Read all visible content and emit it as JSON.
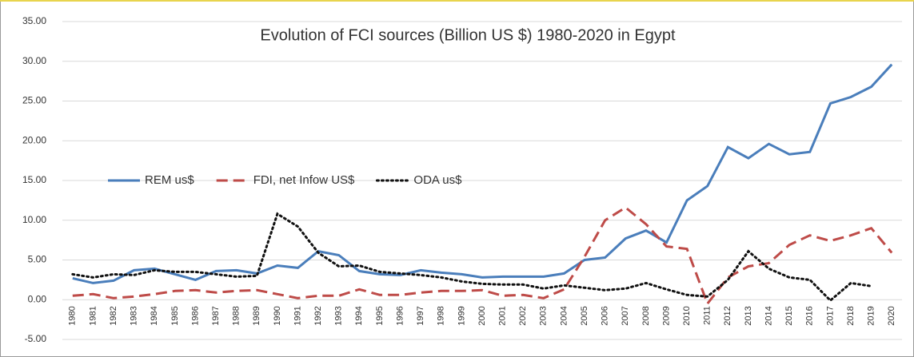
{
  "chart_data": {
    "type": "line",
    "title": "Evolution of FCI sources (Billion US $) 1980-2020 in Egypt",
    "categories": [
      "1980",
      "1981",
      "1982",
      "1983",
      "1984",
      "1985",
      "1986",
      "1987",
      "1988",
      "1989",
      "1990",
      "1991",
      "1992",
      "1993",
      "1994",
      "1995",
      "1996",
      "1997",
      "1998",
      "1999",
      "2000",
      "2001",
      "2002",
      "2003",
      "2004",
      "2005",
      "2006",
      "2007",
      "2008",
      "2009",
      "2010",
      "2011",
      "2012",
      "2013",
      "2014",
      "2015",
      "2016",
      "2017",
      "2018",
      "2019",
      "2020"
    ],
    "series": [
      {
        "name": "REM us$",
        "color": "#4a7ebb",
        "dash": "solid",
        "values": [
          2.7,
          2.1,
          2.4,
          3.7,
          3.9,
          3.2,
          2.5,
          3.6,
          3.7,
          3.3,
          4.3,
          4.0,
          6.1,
          5.6,
          3.6,
          3.2,
          3.1,
          3.7,
          3.4,
          3.2,
          2.8,
          2.9,
          2.9,
          2.9,
          3.3,
          5.0,
          5.3,
          7.7,
          8.7,
          7.2,
          12.5,
          14.3,
          19.2,
          17.8,
          19.6,
          18.3,
          18.6,
          24.7,
          25.5,
          26.8,
          29.6
        ]
      },
      {
        "name": "FDI, net Infow US$",
        "color": "#be4b48",
        "dash": "dashed",
        "values": [
          0.5,
          0.7,
          0.2,
          0.4,
          0.7,
          1.1,
          1.2,
          0.9,
          1.1,
          1.2,
          0.7,
          0.2,
          0.5,
          0.5,
          1.3,
          0.6,
          0.6,
          0.9,
          1.1,
          1.1,
          1.2,
          0.5,
          0.6,
          0.2,
          1.3,
          5.4,
          10.0,
          11.6,
          9.5,
          6.7,
          6.4,
          -0.5,
          2.8,
          4.2,
          4.6,
          6.9,
          8.1,
          7.4,
          8.1,
          9.0,
          5.9
        ]
      },
      {
        "name": "ODA us$",
        "color": "#111111",
        "dash": "dotted",
        "values": [
          3.2,
          2.8,
          3.2,
          3.1,
          3.7,
          3.5,
          3.5,
          3.2,
          2.9,
          3.0,
          10.8,
          9.2,
          5.9,
          4.2,
          4.3,
          3.5,
          3.3,
          3.1,
          2.8,
          2.3,
          2.0,
          1.9,
          1.9,
          1.4,
          1.8,
          1.5,
          1.2,
          1.4,
          2.1,
          1.3,
          0.6,
          0.4,
          2.5,
          6.1,
          3.9,
          2.8,
          2.5,
          -0.1,
          2.1,
          1.7,
          null
        ]
      }
    ],
    "ylim": [
      -5,
      35
    ],
    "yticks": [
      {
        "value": -5,
        "label": "-5.00"
      },
      {
        "value": 0,
        "label": "0.00"
      },
      {
        "value": 5,
        "label": "5.00"
      },
      {
        "value": 10,
        "label": "10.00"
      },
      {
        "value": 15,
        "label": "15.00"
      },
      {
        "value": 20,
        "label": "20.00"
      },
      {
        "value": 25,
        "label": "25.00"
      },
      {
        "value": 30,
        "label": "30.00"
      },
      {
        "value": 35,
        "label": "35.00"
      }
    ],
    "grid": true
  }
}
